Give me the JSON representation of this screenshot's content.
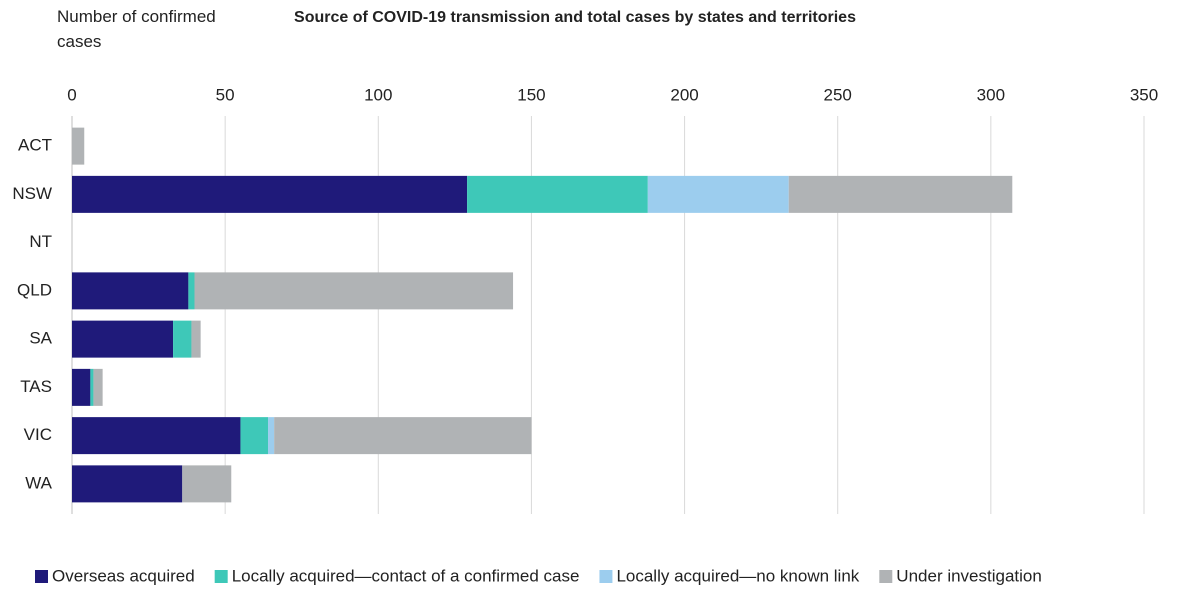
{
  "chart_data": {
    "type": "stacked-bar-horizontal",
    "title": "Source of COVID-19 transmission and total cases by states and territories",
    "xlabel": "Number of confirmed cases",
    "categories": [
      "ACT",
      "NSW",
      "NT",
      "QLD",
      "SA",
      "TAS",
      "VIC",
      "WA"
    ],
    "series": [
      {
        "name": "Overseas acquired",
        "color": "#1f1a7a",
        "values": [
          0,
          129,
          0,
          38,
          33,
          6,
          55,
          36
        ]
      },
      {
        "name": "Locally acquired—contact of a confirmed case",
        "color": "#3ec8b8",
        "values": [
          0,
          59,
          0,
          2,
          6,
          1,
          9,
          0
        ]
      },
      {
        "name": "Locally acquired—no known link",
        "color": "#9ccdee",
        "values": [
          0,
          46,
          0,
          0,
          0,
          0,
          2,
          0
        ]
      },
      {
        "name": "Under investigation",
        "color": "#b0b3b5",
        "values": [
          4,
          73,
          0,
          104,
          3,
          3,
          84,
          16
        ]
      }
    ],
    "xlim": [
      0,
      350
    ],
    "xticks": [
      0,
      50,
      100,
      150,
      200,
      250,
      300,
      350
    ],
    "grid": true,
    "legend": "bottom"
  }
}
